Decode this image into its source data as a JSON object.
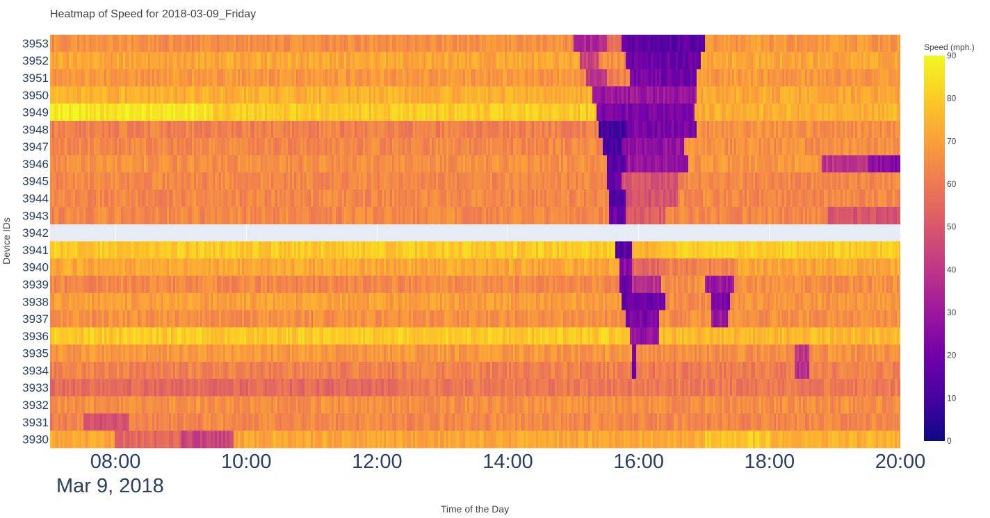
{
  "chart_data": {
    "type": "heatmap",
    "title": "Heatmap of Speed for 2018-03-09_Friday",
    "xlabel": "Time of the Day",
    "ylabel": "Device IDs",
    "colorbar_title": "Speed (mph.)",
    "colorscale": "Plasma",
    "colorscale_stops": [
      "#0d0887",
      "#46039f",
      "#7201a8",
      "#9c179e",
      "#bd3786",
      "#d8576b",
      "#ed7953",
      "#fb9f3a",
      "#fdca26",
      "#f0f921"
    ],
    "zrange": [
      0,
      90
    ],
    "colorbar_ticks": [
      0,
      10,
      20,
      30,
      40,
      50,
      60,
      70,
      80,
      90
    ],
    "x_range_hours": [
      7.0,
      20.0
    ],
    "x_ticks": [
      {
        "hour": 8,
        "label": "08:00"
      },
      {
        "hour": 10,
        "label": "10:00"
      },
      {
        "hour": 12,
        "label": "12:00"
      },
      {
        "hour": 14,
        "label": "14:00"
      },
      {
        "hour": 16,
        "label": "16:00"
      },
      {
        "hour": 18,
        "label": "18:00"
      },
      {
        "hour": 20,
        "label": "20:00"
      }
    ],
    "x_date_label": "Mar 9, 2018",
    "device_ids": [
      "3953",
      "3952",
      "3951",
      "3950",
      "3949",
      "3948",
      "3947",
      "3946",
      "3945",
      "3944",
      "3943",
      "3942",
      "3941",
      "3940",
      "3939",
      "3938",
      "3937",
      "3936",
      "3935",
      "3934",
      "3933",
      "3932",
      "3931",
      "3930"
    ],
    "missing_devices": [
      "3942"
    ],
    "approx_segments": [
      {
        "device": "3953",
        "segments": [
          [
            7.0,
            15.0,
            66
          ],
          [
            15.0,
            15.5,
            35
          ],
          [
            15.5,
            15.75,
            58
          ],
          [
            15.75,
            17.0,
            15
          ],
          [
            17.0,
            20.0,
            68
          ]
        ]
      },
      {
        "device": "3952",
        "segments": [
          [
            7.0,
            15.1,
            72
          ],
          [
            15.1,
            15.4,
            45
          ],
          [
            15.4,
            15.8,
            66
          ],
          [
            15.8,
            16.95,
            18
          ],
          [
            16.95,
            20.0,
            72
          ]
        ]
      },
      {
        "device": "3951",
        "segments": [
          [
            7.0,
            15.2,
            68
          ],
          [
            15.2,
            15.5,
            38
          ],
          [
            15.5,
            15.85,
            62
          ],
          [
            15.85,
            16.9,
            20
          ],
          [
            16.9,
            20.0,
            68
          ]
        ]
      },
      {
        "device": "3950",
        "segments": [
          [
            7.0,
            15.3,
            74
          ],
          [
            15.3,
            16.9,
            30
          ],
          [
            16.9,
            20.0,
            72
          ]
        ]
      },
      {
        "device": "3949",
        "segments": [
          [
            7.0,
            9.5,
            86
          ],
          [
            9.5,
            15.35,
            80
          ],
          [
            15.35,
            16.85,
            22
          ],
          [
            16.85,
            20.0,
            74
          ]
        ]
      },
      {
        "device": "3948",
        "segments": [
          [
            7.0,
            15.4,
            62
          ],
          [
            15.4,
            15.8,
            10
          ],
          [
            15.8,
            16.9,
            22
          ],
          [
            16.9,
            20.0,
            66
          ]
        ]
      },
      {
        "device": "3947",
        "segments": [
          [
            7.0,
            15.45,
            64
          ],
          [
            15.45,
            15.75,
            12
          ],
          [
            15.75,
            16.7,
            28
          ],
          [
            16.7,
            20.0,
            66
          ]
        ]
      },
      {
        "device": "3946",
        "segments": [
          [
            7.0,
            15.5,
            66
          ],
          [
            15.5,
            15.8,
            15
          ],
          [
            15.8,
            16.75,
            30
          ],
          [
            16.75,
            18.8,
            68
          ],
          [
            18.8,
            19.5,
            40
          ],
          [
            19.5,
            20.0,
            25
          ]
        ]
      },
      {
        "device": "3945",
        "segments": [
          [
            7.0,
            15.5,
            64
          ],
          [
            15.5,
            15.75,
            18
          ],
          [
            15.75,
            16.6,
            50
          ],
          [
            16.6,
            20.0,
            64
          ]
        ]
      },
      {
        "device": "3944",
        "segments": [
          [
            7.0,
            15.55,
            64
          ],
          [
            15.55,
            15.8,
            15
          ],
          [
            15.8,
            16.6,
            48
          ],
          [
            16.6,
            20.0,
            64
          ]
        ]
      },
      {
        "device": "3943",
        "segments": [
          [
            7.0,
            15.55,
            64
          ],
          [
            15.55,
            15.8,
            18
          ],
          [
            15.8,
            16.4,
            52
          ],
          [
            16.4,
            18.9,
            64
          ],
          [
            18.9,
            20.0,
            50
          ]
        ]
      },
      {
        "device": "3941",
        "segments": [
          [
            7.0,
            15.65,
            80
          ],
          [
            15.65,
            15.9,
            15
          ],
          [
            15.9,
            16.4,
            75
          ],
          [
            16.4,
            20.0,
            80
          ]
        ]
      },
      {
        "device": "3940",
        "segments": [
          [
            7.0,
            15.7,
            72
          ],
          [
            15.7,
            15.9,
            25
          ],
          [
            15.9,
            16.4,
            55
          ],
          [
            16.4,
            17.5,
            62
          ],
          [
            17.5,
            20.0,
            72
          ]
        ]
      },
      {
        "device": "3939",
        "segments": [
          [
            7.0,
            15.7,
            64
          ],
          [
            15.7,
            15.9,
            20
          ],
          [
            15.9,
            16.35,
            38
          ],
          [
            16.35,
            17.0,
            66
          ],
          [
            17.0,
            17.45,
            30
          ],
          [
            17.45,
            20.0,
            66
          ]
        ]
      },
      {
        "device": "3938",
        "segments": [
          [
            7.0,
            15.75,
            70
          ],
          [
            15.75,
            16.4,
            18
          ],
          [
            16.4,
            17.1,
            66
          ],
          [
            17.1,
            17.4,
            22
          ],
          [
            17.4,
            20.0,
            68
          ]
        ]
      },
      {
        "device": "3937",
        "segments": [
          [
            7.0,
            15.8,
            66
          ],
          [
            15.8,
            16.3,
            22
          ],
          [
            16.3,
            17.1,
            66
          ],
          [
            17.1,
            17.35,
            30
          ],
          [
            17.35,
            20.0,
            66
          ]
        ]
      },
      {
        "device": "3936",
        "segments": [
          [
            7.0,
            15.85,
            80
          ],
          [
            15.85,
            16.3,
            28
          ],
          [
            16.3,
            20.0,
            76
          ]
        ]
      },
      {
        "device": "3935",
        "segments": [
          [
            7.0,
            15.9,
            68
          ],
          [
            15.9,
            15.95,
            25
          ],
          [
            15.95,
            18.4,
            66
          ],
          [
            18.4,
            18.6,
            40
          ],
          [
            18.6,
            20.0,
            66
          ]
        ]
      },
      {
        "device": "3934",
        "segments": [
          [
            7.0,
            15.9,
            62
          ],
          [
            15.9,
            15.95,
            20
          ],
          [
            15.95,
            18.4,
            60
          ],
          [
            18.4,
            18.6,
            38
          ],
          [
            18.6,
            20.0,
            62
          ]
        ]
      },
      {
        "device": "3933",
        "segments": [
          [
            7.0,
            12.5,
            56
          ],
          [
            12.5,
            20.0,
            60
          ]
        ]
      },
      {
        "device": "3932",
        "segments": [
          [
            7.0,
            20.0,
            66
          ]
        ]
      },
      {
        "device": "3931",
        "segments": [
          [
            7.0,
            7.5,
            62
          ],
          [
            7.5,
            8.2,
            48
          ],
          [
            8.2,
            20.0,
            64
          ]
        ]
      },
      {
        "device": "3930",
        "segments": [
          [
            7.0,
            8.0,
            72
          ],
          [
            8.0,
            9.0,
            55
          ],
          [
            9.0,
            9.8,
            44
          ],
          [
            9.8,
            17.0,
            72
          ],
          [
            17.0,
            18.0,
            80
          ],
          [
            18.0,
            20.0,
            74
          ]
        ]
      }
    ]
  }
}
